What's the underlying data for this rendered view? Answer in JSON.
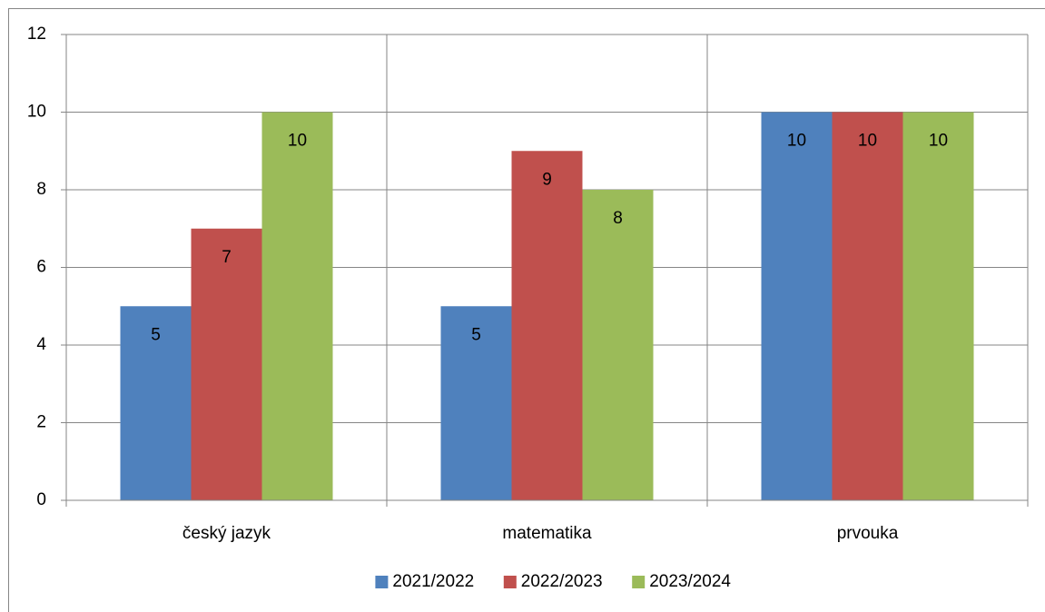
{
  "chart_data": {
    "type": "bar",
    "categories": [
      "český jazyk",
      "matematika",
      "prvouka"
    ],
    "series": [
      {
        "name": "2021/2022",
        "color": "#4f81bd",
        "values": [
          5,
          5,
          10
        ]
      },
      {
        "name": "2022/2023",
        "color": "#c0504d",
        "values": [
          7,
          9,
          10
        ]
      },
      {
        "name": "2023/2024",
        "color": "#9bbb59",
        "values": [
          10,
          8,
          10
        ]
      }
    ],
    "ylim": [
      0,
      12
    ],
    "yticks": [
      0,
      2,
      4,
      6,
      8,
      10,
      12
    ],
    "grid": true,
    "legend": "bottom",
    "data_labels": true
  }
}
